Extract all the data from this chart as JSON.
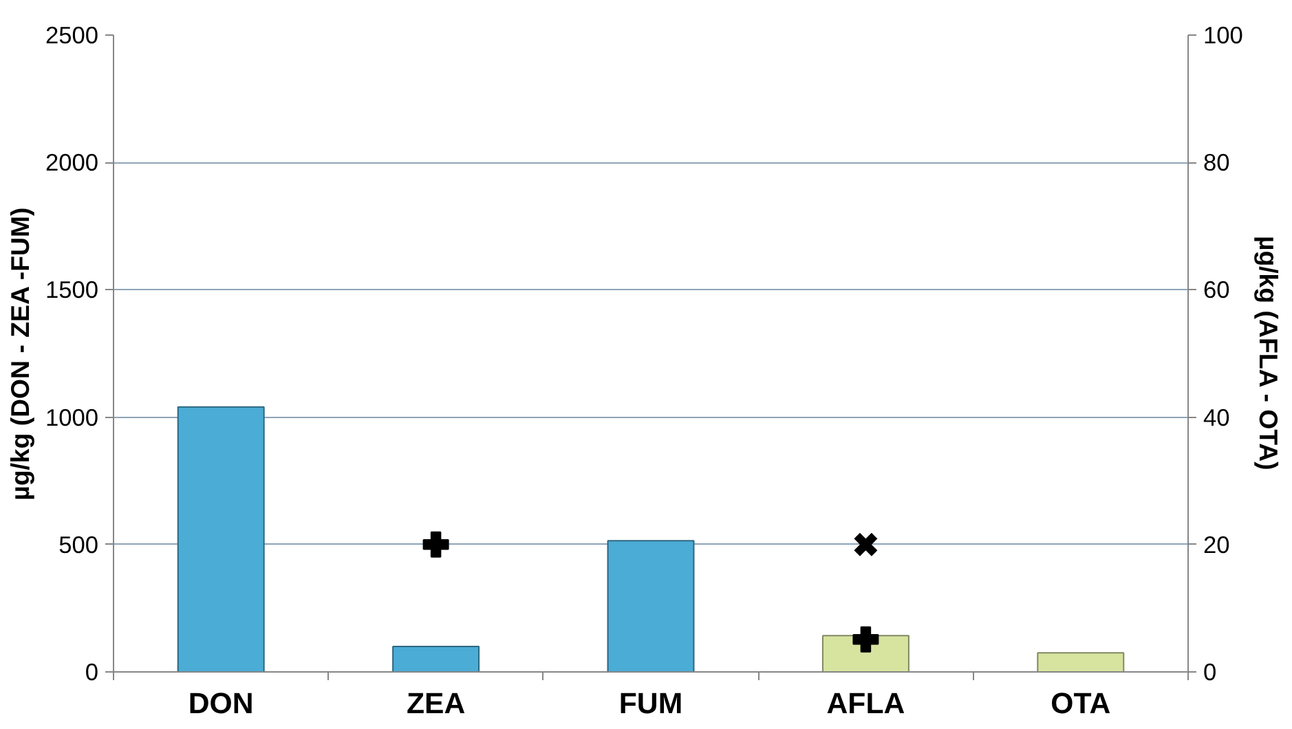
{
  "chart_data": {
    "type": "bar",
    "categories": [
      "DON",
      "ZEA",
      "FUM",
      "AFLA",
      "OTA"
    ],
    "ylabel": "µg/kg (DON - ZEA -FUM)",
    "y2label": "µg/kg (AFLA - OTA)",
    "ylim": [
      0,
      2500
    ],
    "yticks": [
      0,
      500,
      1000,
      1500,
      2000,
      2500
    ],
    "y2lim": [
      0,
      100
    ],
    "y2ticks": [
      0,
      20,
      40,
      60,
      80,
      100
    ],
    "grid": "y",
    "series": [
      {
        "color": "#4bacd6",
        "values": [
          1040,
          100,
          515,
          null,
          null
        ]
      },
      {
        "axis": "y2",
        "color": "#d7e4a0",
        "values": [
          null,
          null,
          null,
          5.7,
          3
        ]
      },
      {
        "type": "scatter",
        "marker": "cross",
        "color": "#000000",
        "values": [
          null,
          500,
          null,
          null,
          null
        ]
      },
      {
        "type": "scatter",
        "axis": "y2",
        "marker": "x",
        "color": "#000000",
        "values": [
          null,
          null,
          null,
          20,
          null
        ]
      },
      {
        "type": "scatter",
        "axis": "y2",
        "marker": "cross",
        "color": "#000000",
        "values": [
          null,
          null,
          null,
          5.1,
          null
        ]
      }
    ]
  }
}
